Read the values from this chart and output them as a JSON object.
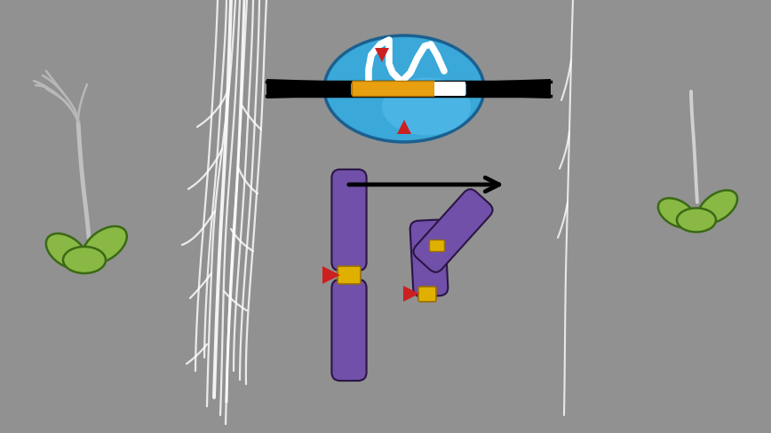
{
  "bg_color": "#919191",
  "fig_width": 8.68,
  "fig_height": 4.88,
  "chr_color": "#7050a8",
  "chr_edge": "#2a1545",
  "centromere_color": "#e0b000",
  "arrow_red": "#cc2020",
  "leaf_color": "#8ab845",
  "leaf_outline": "#3a6a15",
  "stem_color": "#c8c8c8",
  "cell_blue": "#3aa8d8",
  "cell_blue2": "#5bc0f0",
  "microfluidic_orange": "#e8a010",
  "white": "#ffffff",
  "black": "#111111"
}
